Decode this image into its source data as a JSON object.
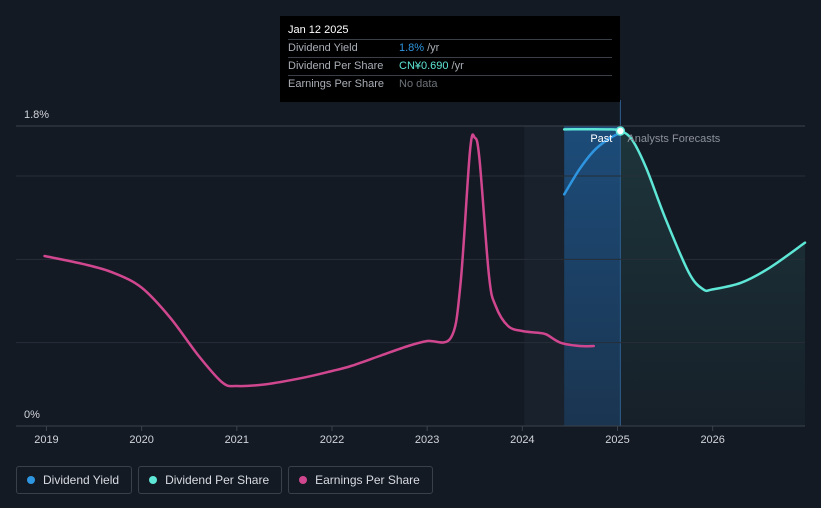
{
  "tooltip": {
    "date": "Jan 12 2025",
    "rows": [
      {
        "label": "Dividend Yield",
        "value": "1.8%",
        "unit": "/yr"
      },
      {
        "label": "Dividend Per Share",
        "value": "CN¥0.690",
        "unit": "/yr"
      },
      {
        "label": "Earnings Per Share",
        "value": "No data",
        "unit": ""
      }
    ]
  },
  "legend": [
    {
      "label": "Dividend Yield",
      "color": "#2e95e0"
    },
    {
      "label": "Dividend Per Share",
      "color": "#5ee7d6"
    },
    {
      "label": "Earnings Per Share",
      "color": "#d0478f"
    }
  ],
  "chart_data": {
    "type": "line",
    "title": "",
    "xlabel": "",
    "ylabel": "",
    "x_ticks": [
      "2019",
      "2020",
      "2021",
      "2022",
      "2023",
      "2024",
      "2025",
      "2026"
    ],
    "x_tick_values": [
      2019,
      2020,
      2021,
      2022,
      2023,
      2024,
      2025,
      2026
    ],
    "xlim": [
      2018.68,
      2026.97
    ],
    "y_tick_labels": [
      {
        "value": 1.8,
        "label": "1.8%"
      },
      {
        "value": 0,
        "label": "0%"
      }
    ],
    "ylim": [
      0,
      1.8
    ],
    "grid_values": [
      0.5,
      1.0,
      1.5,
      1.8
    ],
    "annotations": {
      "past": "Past",
      "forecast": "Analysts Forecasts",
      "today": 2025.03,
      "past_start": 2024.02
    },
    "series": [
      {
        "name": "Earnings Per Share",
        "color": "#d0478f",
        "points": [
          [
            2018.98,
            1.02
          ],
          [
            2019.4,
            0.97
          ],
          [
            2019.7,
            0.92
          ],
          [
            2020.0,
            0.83
          ],
          [
            2020.3,
            0.65
          ],
          [
            2020.6,
            0.42
          ],
          [
            2020.85,
            0.26
          ],
          [
            2021.0,
            0.24
          ],
          [
            2021.3,
            0.25
          ],
          [
            2021.7,
            0.29
          ],
          [
            2022.0,
            0.33
          ],
          [
            2022.2,
            0.36
          ],
          [
            2022.5,
            0.42
          ],
          [
            2022.8,
            0.48
          ],
          [
            2023.0,
            0.51
          ],
          [
            2023.25,
            0.53
          ],
          [
            2023.35,
            0.85
          ],
          [
            2023.45,
            1.65
          ],
          [
            2023.5,
            1.73
          ],
          [
            2023.55,
            1.6
          ],
          [
            2023.65,
            0.9
          ],
          [
            2023.72,
            0.72
          ],
          [
            2023.85,
            0.6
          ],
          [
            2024.0,
            0.57
          ],
          [
            2024.15,
            0.56
          ],
          [
            2024.25,
            0.55
          ],
          [
            2024.4,
            0.5
          ],
          [
            2024.6,
            0.48
          ],
          [
            2024.75,
            0.48
          ]
        ]
      },
      {
        "name": "Dividend Yield",
        "color": "#2e95e0",
        "points": [
          [
            2024.44,
            1.39
          ],
          [
            2024.6,
            1.54
          ],
          [
            2024.75,
            1.65
          ],
          [
            2024.9,
            1.72
          ],
          [
            2025.03,
            1.76
          ]
        ]
      },
      {
        "name": "Dividend Per Share",
        "color": "#5ee7d6",
        "points": [
          [
            2024.44,
            1.78
          ],
          [
            2024.9,
            1.78
          ],
          [
            2025.03,
            1.77
          ],
          [
            2025.15,
            1.72
          ],
          [
            2025.3,
            1.55
          ],
          [
            2025.5,
            1.25
          ],
          [
            2025.75,
            0.92
          ],
          [
            2025.9,
            0.82
          ],
          [
            2026.0,
            0.82
          ],
          [
            2026.3,
            0.86
          ],
          [
            2026.6,
            0.95
          ],
          [
            2026.97,
            1.1
          ]
        ]
      }
    ],
    "markers": [
      {
        "series": "Dividend Per Share",
        "x": 2025.03,
        "y": 1.77
      }
    ]
  }
}
